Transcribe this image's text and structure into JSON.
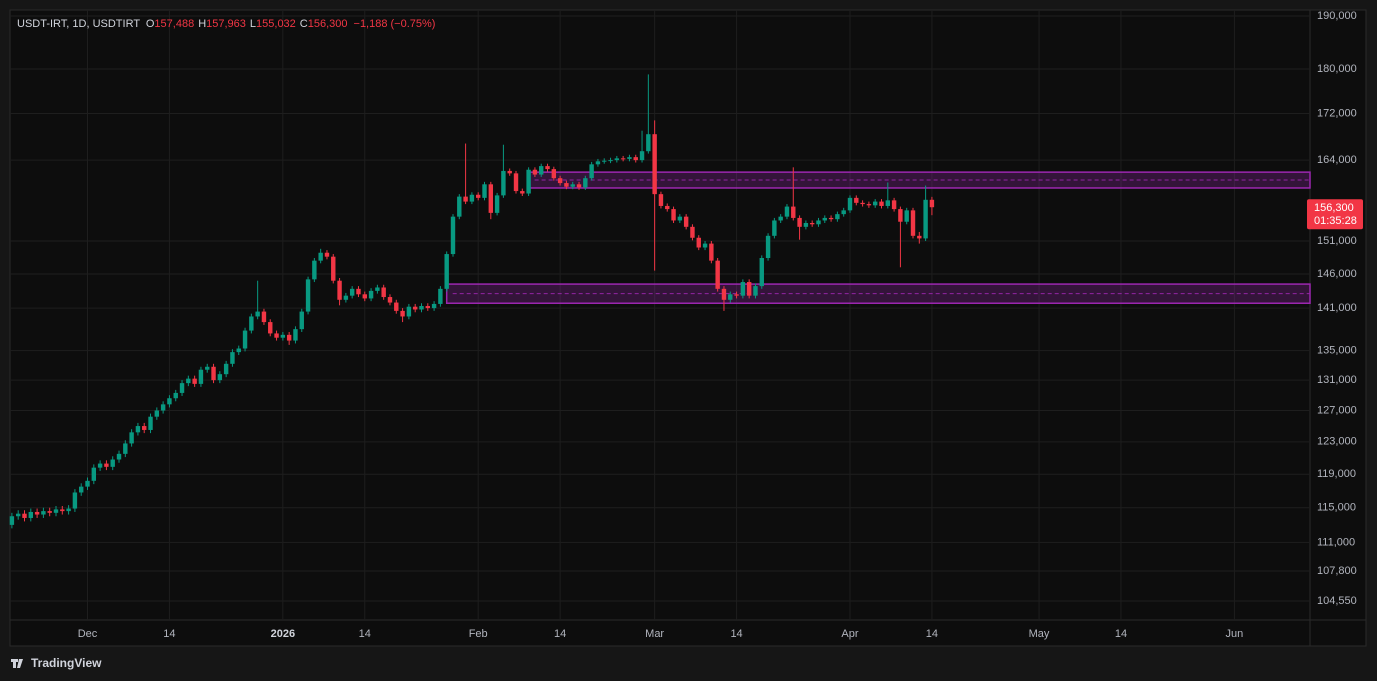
{
  "chart_data": {
    "type": "candlestick",
    "title": "USDT-IRT, 1D, USDTIRT",
    "ohlc_legend": [
      {
        "label": "O",
        "value": "157,488"
      },
      {
        "label": "H",
        "value": "157,963"
      },
      {
        "label": "L",
        "value": "155,032"
      },
      {
        "label": "C",
        "value": "156,300"
      }
    ],
    "change": "−1,188 (−0.75%)",
    "last_price": {
      "value": 156300,
      "label": "156,300"
    },
    "countdown": "01:35:28",
    "branding": "TradingView",
    "up_color": "#089981",
    "down_color": "#f23645",
    "zone_color": "#9c27b0",
    "log_scale": true,
    "grid": true,
    "ylim": [
      102540,
      191170
    ],
    "xlim": [
      -0.3,
      206
    ],
    "yticks": [
      {
        "value": 190000,
        "label": "190,000"
      },
      {
        "value": 180000,
        "label": "180,000"
      },
      {
        "value": 172000,
        "label": "172,000"
      },
      {
        "value": 164000,
        "label": "164,000"
      },
      {
        "value": 151000,
        "label": "151,000"
      },
      {
        "value": 146000,
        "label": "146,000"
      },
      {
        "value": 141000,
        "label": "141,000"
      },
      {
        "value": 135000,
        "label": "135,000"
      },
      {
        "value": 131000,
        "label": "131,000"
      },
      {
        "value": 127000,
        "label": "127,000"
      },
      {
        "value": 123000,
        "label": "123,000"
      },
      {
        "value": 119000,
        "label": "119,000"
      },
      {
        "value": 115000,
        "label": "115,000"
      },
      {
        "value": 111000,
        "label": "111,000"
      },
      {
        "value": 107800,
        "label": "107,800"
      },
      {
        "value": 104550,
        "label": "104,550"
      }
    ],
    "xticks": [
      {
        "value": 12,
        "label": "Dec"
      },
      {
        "value": 25,
        "label": "14"
      },
      {
        "value": 43,
        "label": "2026"
      },
      {
        "value": 56,
        "label": "14"
      },
      {
        "value": 74,
        "label": "Feb"
      },
      {
        "value": 87,
        "label": "14"
      },
      {
        "value": 102,
        "label": "Mar"
      },
      {
        "value": 115,
        "label": "14"
      },
      {
        "value": 133,
        "label": "Apr"
      },
      {
        "value": 146,
        "label": "14"
      },
      {
        "value": 163,
        "label": "May"
      },
      {
        "value": 176,
        "label": "14"
      },
      {
        "value": 194,
        "label": "Jun"
      }
    ],
    "zones": [
      {
        "start": 82,
        "top": 162000,
        "bottom": 159400
      },
      {
        "start": 69,
        "top": 144500,
        "bottom": 141700
      }
    ],
    "open": [
      113000,
      114000,
      114300,
      113800,
      114500,
      114200,
      114600,
      114400,
      114800,
      114600,
      114900,
      116800,
      117500,
      118200,
      119800,
      120300,
      119900,
      120800,
      121500,
      122800,
      124200,
      125000,
      124500,
      126200,
      127000,
      127800,
      128600,
      129300,
      130600,
      131200,
      130500,
      132400,
      132800,
      131000,
      131800,
      133200,
      134800,
      135300,
      137800,
      139800,
      140500,
      139000,
      137400,
      136800,
      137200,
      136400,
      138000,
      140500,
      145200,
      148000,
      149200,
      148600,
      145000,
      142200,
      142800,
      143800,
      143000,
      142400,
      143500,
      144000,
      142600,
      141800,
      140600,
      139800,
      141200,
      140800,
      141300,
      141000,
      141600,
      143800,
      149000,
      154800,
      158000,
      157200,
      158300,
      157800,
      160000,
      155400,
      158200,
      162200,
      161800,
      158900,
      158500,
      162400,
      161600,
      163000,
      162500,
      161000,
      160200,
      159600,
      160000,
      159500,
      161000,
      163300,
      163800,
      163900,
      164000,
      164300,
      164200,
      164500,
      164000,
      165500,
      168400,
      158400,
      156500,
      156000,
      154200,
      154800,
      153200,
      151500,
      150000,
      150600,
      148000,
      143800,
      142200,
      143000,
      142800,
      144800,
      142800,
      144200,
      148400,
      151800,
      154200,
      154800,
      156400,
      154600,
      153200,
      153800,
      153600,
      154200,
      154600,
      154400,
      155200,
      155800,
      157800,
      157000,
      156800,
      156600,
      157200,
      156500,
      157400,
      156000,
      154000,
      155800,
      151800,
      151400,
      157488
    ],
    "high": [
      114400,
      114700,
      114700,
      114900,
      114900,
      115000,
      115000,
      115200,
      115200,
      115300,
      117200,
      117900,
      118600,
      120200,
      120700,
      120700,
      121200,
      121900,
      123200,
      124600,
      125400,
      125400,
      126600,
      127400,
      128200,
      129000,
      129700,
      131000,
      131600,
      131600,
      132800,
      133200,
      133200,
      132200,
      133600,
      135200,
      135700,
      138200,
      140200,
      145000,
      140900,
      139400,
      137800,
      137600,
      137600,
      138400,
      140900,
      145600,
      148400,
      149800,
      149600,
      149000,
      145400,
      143200,
      144200,
      144200,
      143400,
      143900,
      144400,
      144400,
      143000,
      142200,
      141000,
      141600,
      141600,
      141700,
      141700,
      142000,
      144200,
      149400,
      155200,
      158400,
      166800,
      158700,
      158700,
      160400,
      160400,
      158600,
      166600,
      162600,
      162200,
      159300,
      162800,
      162800,
      163400,
      163400,
      162900,
      161400,
      160600,
      160400,
      160400,
      161400,
      163700,
      164200,
      164300,
      164400,
      164700,
      164700,
      164900,
      164900,
      169000,
      179000,
      170800,
      158800,
      156900,
      156400,
      155200,
      155200,
      153600,
      151900,
      151000,
      151000,
      148400,
      144200,
      143400,
      143400,
      145200,
      145200,
      144600,
      148800,
      152200,
      154600,
      155200,
      156800,
      162800,
      155000,
      154200,
      154200,
      154600,
      155000,
      155000,
      155600,
      156200,
      158200,
      158200,
      157400,
      157200,
      157600,
      157600,
      160300,
      157800,
      156400,
      156200,
      156200,
      152400,
      159800,
      157963
    ],
    "low": [
      112600,
      113600,
      113400,
      113400,
      113800,
      113800,
      114000,
      114000,
      114200,
      114200,
      114500,
      116400,
      117100,
      117800,
      119400,
      119500,
      119500,
      120400,
      121100,
      122400,
      123800,
      124100,
      124100,
      125800,
      126600,
      127400,
      128200,
      128900,
      130200,
      130100,
      130100,
      132000,
      130600,
      130600,
      131400,
      132800,
      134400,
      134900,
      137400,
      139400,
      138600,
      137000,
      136400,
      136400,
      135800,
      136000,
      137600,
      140100,
      144800,
      147600,
      148200,
      144600,
      141400,
      141800,
      142400,
      142600,
      142000,
      142000,
      143100,
      142200,
      141400,
      140200,
      139000,
      139400,
      140400,
      140400,
      140600,
      140600,
      141200,
      143400,
      148600,
      154400,
      156800,
      156800,
      157400,
      157400,
      154400,
      155000,
      157800,
      161400,
      158500,
      158100,
      158100,
      161200,
      161200,
      162100,
      160600,
      159800,
      159200,
      159200,
      159100,
      159100,
      160600,
      162900,
      163400,
      163500,
      163600,
      163800,
      163800,
      163600,
      163600,
      165100,
      146500,
      156100,
      155600,
      153800,
      153800,
      152800,
      151100,
      149600,
      149600,
      147600,
      143400,
      140600,
      141800,
      142400,
      142400,
      142400,
      142400,
      143800,
      148000,
      151400,
      153800,
      154400,
      154200,
      151200,
      152800,
      153200,
      153200,
      153800,
      154000,
      154000,
      154800,
      155400,
      156600,
      156400,
      156200,
      156200,
      156100,
      156100,
      155600,
      147000,
      153600,
      151400,
      150600,
      151000,
      155032
    ],
    "close": [
      114000,
      114300,
      113800,
      114500,
      114200,
      114600,
      114400,
      114800,
      114600,
      114900,
      116800,
      117500,
      118200,
      119800,
      120300,
      119900,
      120800,
      121500,
      122800,
      124200,
      125000,
      124500,
      126200,
      127000,
      127800,
      128600,
      129300,
      130600,
      131200,
      130500,
      132400,
      132800,
      131000,
      131800,
      133200,
      134800,
      135300,
      137800,
      139800,
      140500,
      139000,
      137400,
      136800,
      137200,
      136400,
      138000,
      140500,
      145200,
      148000,
      149200,
      148600,
      145000,
      142200,
      142800,
      143800,
      143000,
      142400,
      143500,
      144000,
      142600,
      141800,
      140600,
      139800,
      141200,
      140800,
      141300,
      141000,
      141600,
      143800,
      149000,
      154800,
      158000,
      157200,
      158300,
      157800,
      160000,
      155400,
      158200,
      162200,
      161800,
      158900,
      158500,
      162400,
      161600,
      163000,
      162500,
      161000,
      160200,
      159600,
      160000,
      159500,
      161000,
      163300,
      163800,
      163900,
      164000,
      164300,
      164200,
      164500,
      164000,
      165500,
      168400,
      158400,
      156500,
      156000,
      154200,
      154800,
      153200,
      151500,
      150000,
      150600,
      148000,
      143800,
      142200,
      143000,
      142800,
      144800,
      142800,
      144200,
      148400,
      151800,
      154200,
      154800,
      156400,
      154600,
      153200,
      153800,
      153600,
      154200,
      154600,
      154400,
      155200,
      155800,
      157800,
      157000,
      156800,
      156600,
      157200,
      156500,
      157400,
      156000,
      154000,
      155800,
      151800,
      151400,
      157488,
      156300
    ]
  }
}
